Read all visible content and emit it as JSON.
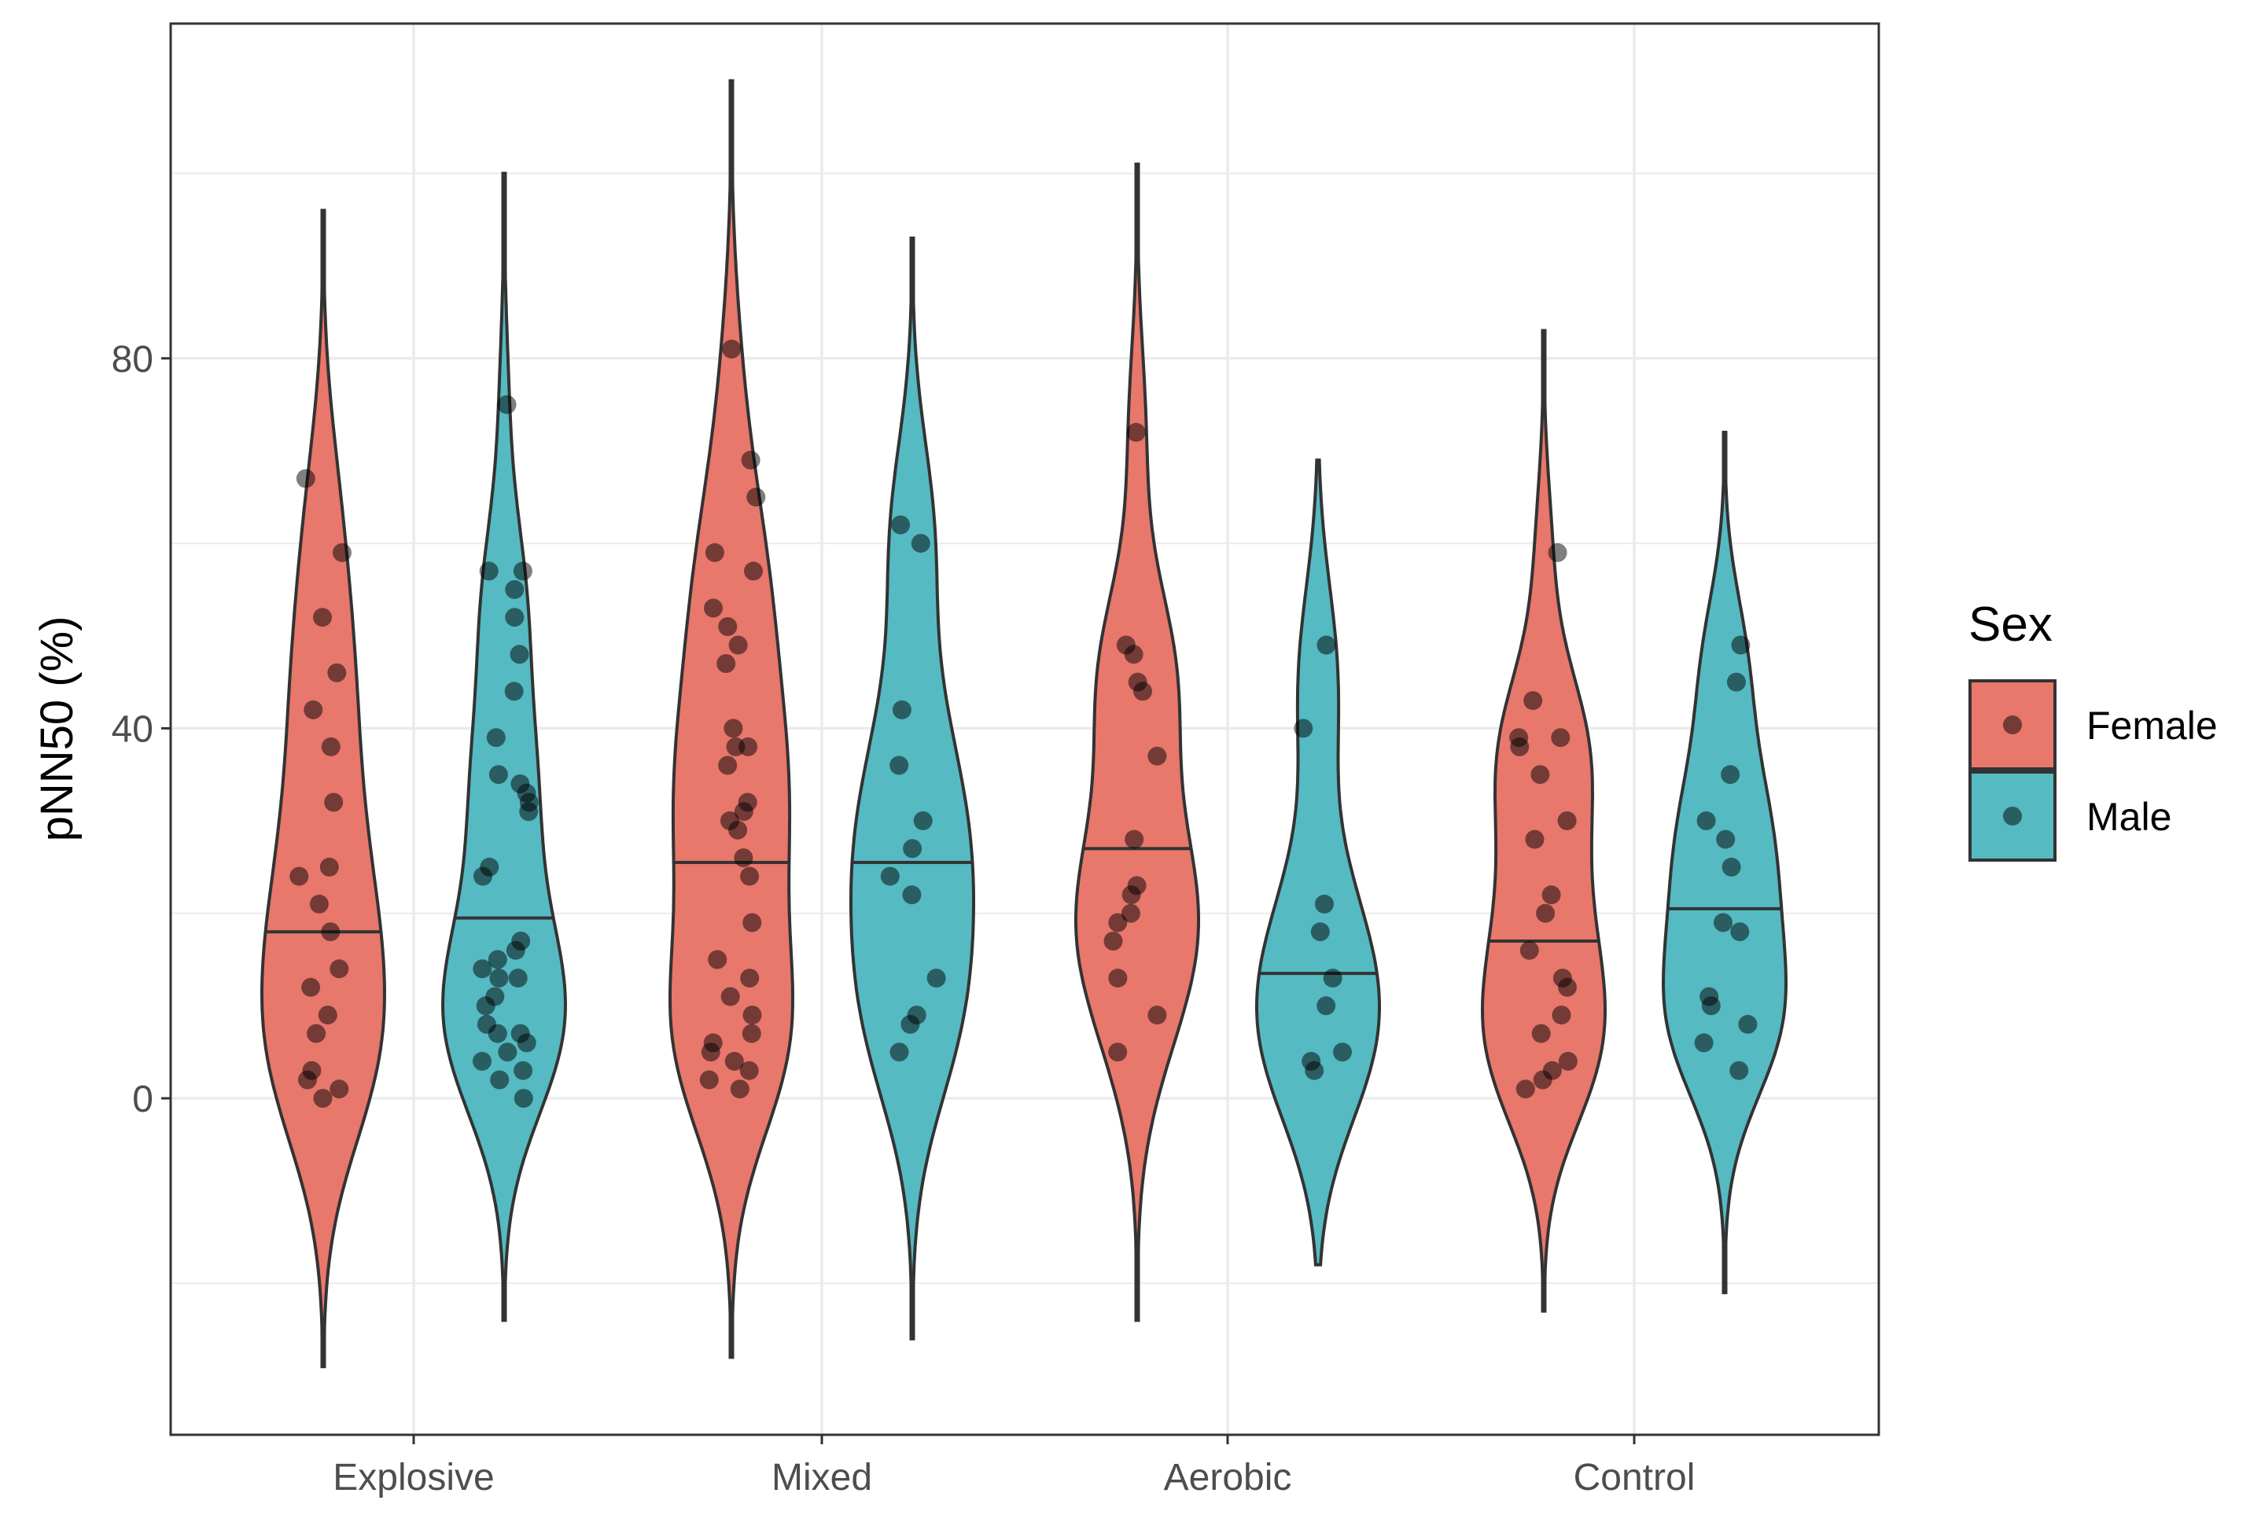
{
  "chart_data": {
    "type": "violin",
    "xlabel": "",
    "ylabel": "pNN50 (%)",
    "ylim": [
      -36,
      117
    ],
    "yticks": [
      0,
      40,
      80
    ],
    "grid": true,
    "legend": {
      "title": "Sex",
      "position": "right"
    },
    "categories": [
      "Explosive",
      "Mixed",
      "Aerobic",
      "Control"
    ],
    "series": [
      {
        "name": "Female",
        "color": "#E8776C"
      },
      {
        "name": "Male",
        "color": "#55BAC2"
      }
    ],
    "groups": [
      {
        "category": "Explosive",
        "sex": "Female",
        "median": 18.0,
        "range": [
          -29,
          96
        ],
        "points": [
          67,
          59,
          52,
          46,
          42,
          38,
          32,
          25,
          24,
          21,
          18,
          14,
          12,
          9,
          7,
          3,
          2,
          1,
          0
        ]
      },
      {
        "category": "Explosive",
        "sex": "Male",
        "median": 19.5,
        "range": [
          -24,
          100
        ],
        "points": [
          75,
          57,
          57,
          55,
          52,
          48,
          44,
          39,
          35,
          34,
          33,
          32,
          31,
          25,
          24,
          17,
          16,
          15,
          14,
          13,
          13,
          11,
          10,
          8,
          7,
          7,
          6,
          5,
          4,
          3,
          2,
          0
        ]
      },
      {
        "category": "Mixed",
        "sex": "Female",
        "median": 25.5,
        "range": [
          -28,
          110
        ],
        "points": [
          81,
          69,
          65,
          59,
          57,
          53,
          51,
          49,
          47,
          40,
          38,
          38,
          36,
          32,
          31,
          30,
          29,
          26,
          24,
          19,
          15,
          13,
          11,
          9,
          7,
          6,
          5,
          4,
          3,
          2,
          1
        ]
      },
      {
        "category": "Mixed",
        "sex": "Male",
        "median": 25.5,
        "range": [
          -26,
          93
        ],
        "points": [
          62,
          60,
          42,
          36,
          30,
          27,
          24,
          22,
          13,
          9,
          8,
          5
        ]
      },
      {
        "category": "Aerobic",
        "sex": "Female",
        "median": 27.0,
        "range": [
          -24,
          101
        ],
        "points": [
          72,
          49,
          48,
          45,
          44,
          37,
          28,
          23,
          22,
          20,
          19,
          17,
          13,
          9,
          5
        ]
      },
      {
        "category": "Aerobic",
        "sex": "Male",
        "median": 13.5,
        "range": [
          -18,
          69
        ],
        "points": [
          49,
          40,
          21,
          18,
          13,
          10,
          5,
          4,
          3
        ]
      },
      {
        "category": "Control",
        "sex": "Female",
        "median": 17.0,
        "range": [
          -23,
          83
        ],
        "points": [
          59,
          43,
          39,
          39,
          38,
          35,
          30,
          28,
          22,
          20,
          16,
          13,
          12,
          9,
          7,
          4,
          3,
          2,
          1
        ]
      },
      {
        "category": "Control",
        "sex": "Male",
        "median": 20.5,
        "range": [
          -21,
          72
        ],
        "points": [
          49,
          45,
          35,
          30,
          28,
          25,
          19,
          18,
          11,
          10,
          8,
          6,
          3
        ]
      }
    ]
  }
}
